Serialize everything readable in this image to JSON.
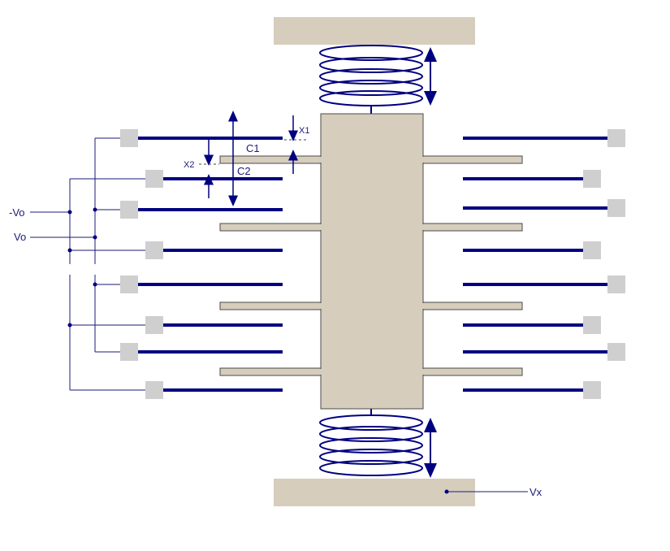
{
  "labels": {
    "neg_vo": "-Vo",
    "vo": "Vo",
    "vx": "Vx",
    "c1": "C1",
    "c2": "C2",
    "x1": "X1",
    "x2": "X2"
  },
  "colors": {
    "anchor": "#d6cdbd",
    "mass": "#d6cdbd",
    "mass_border": "#4a4a4a",
    "electrode": "#000080",
    "pad": "#cfcfcf",
    "wire": "#1a1a7a",
    "spring": "#000080"
  }
}
